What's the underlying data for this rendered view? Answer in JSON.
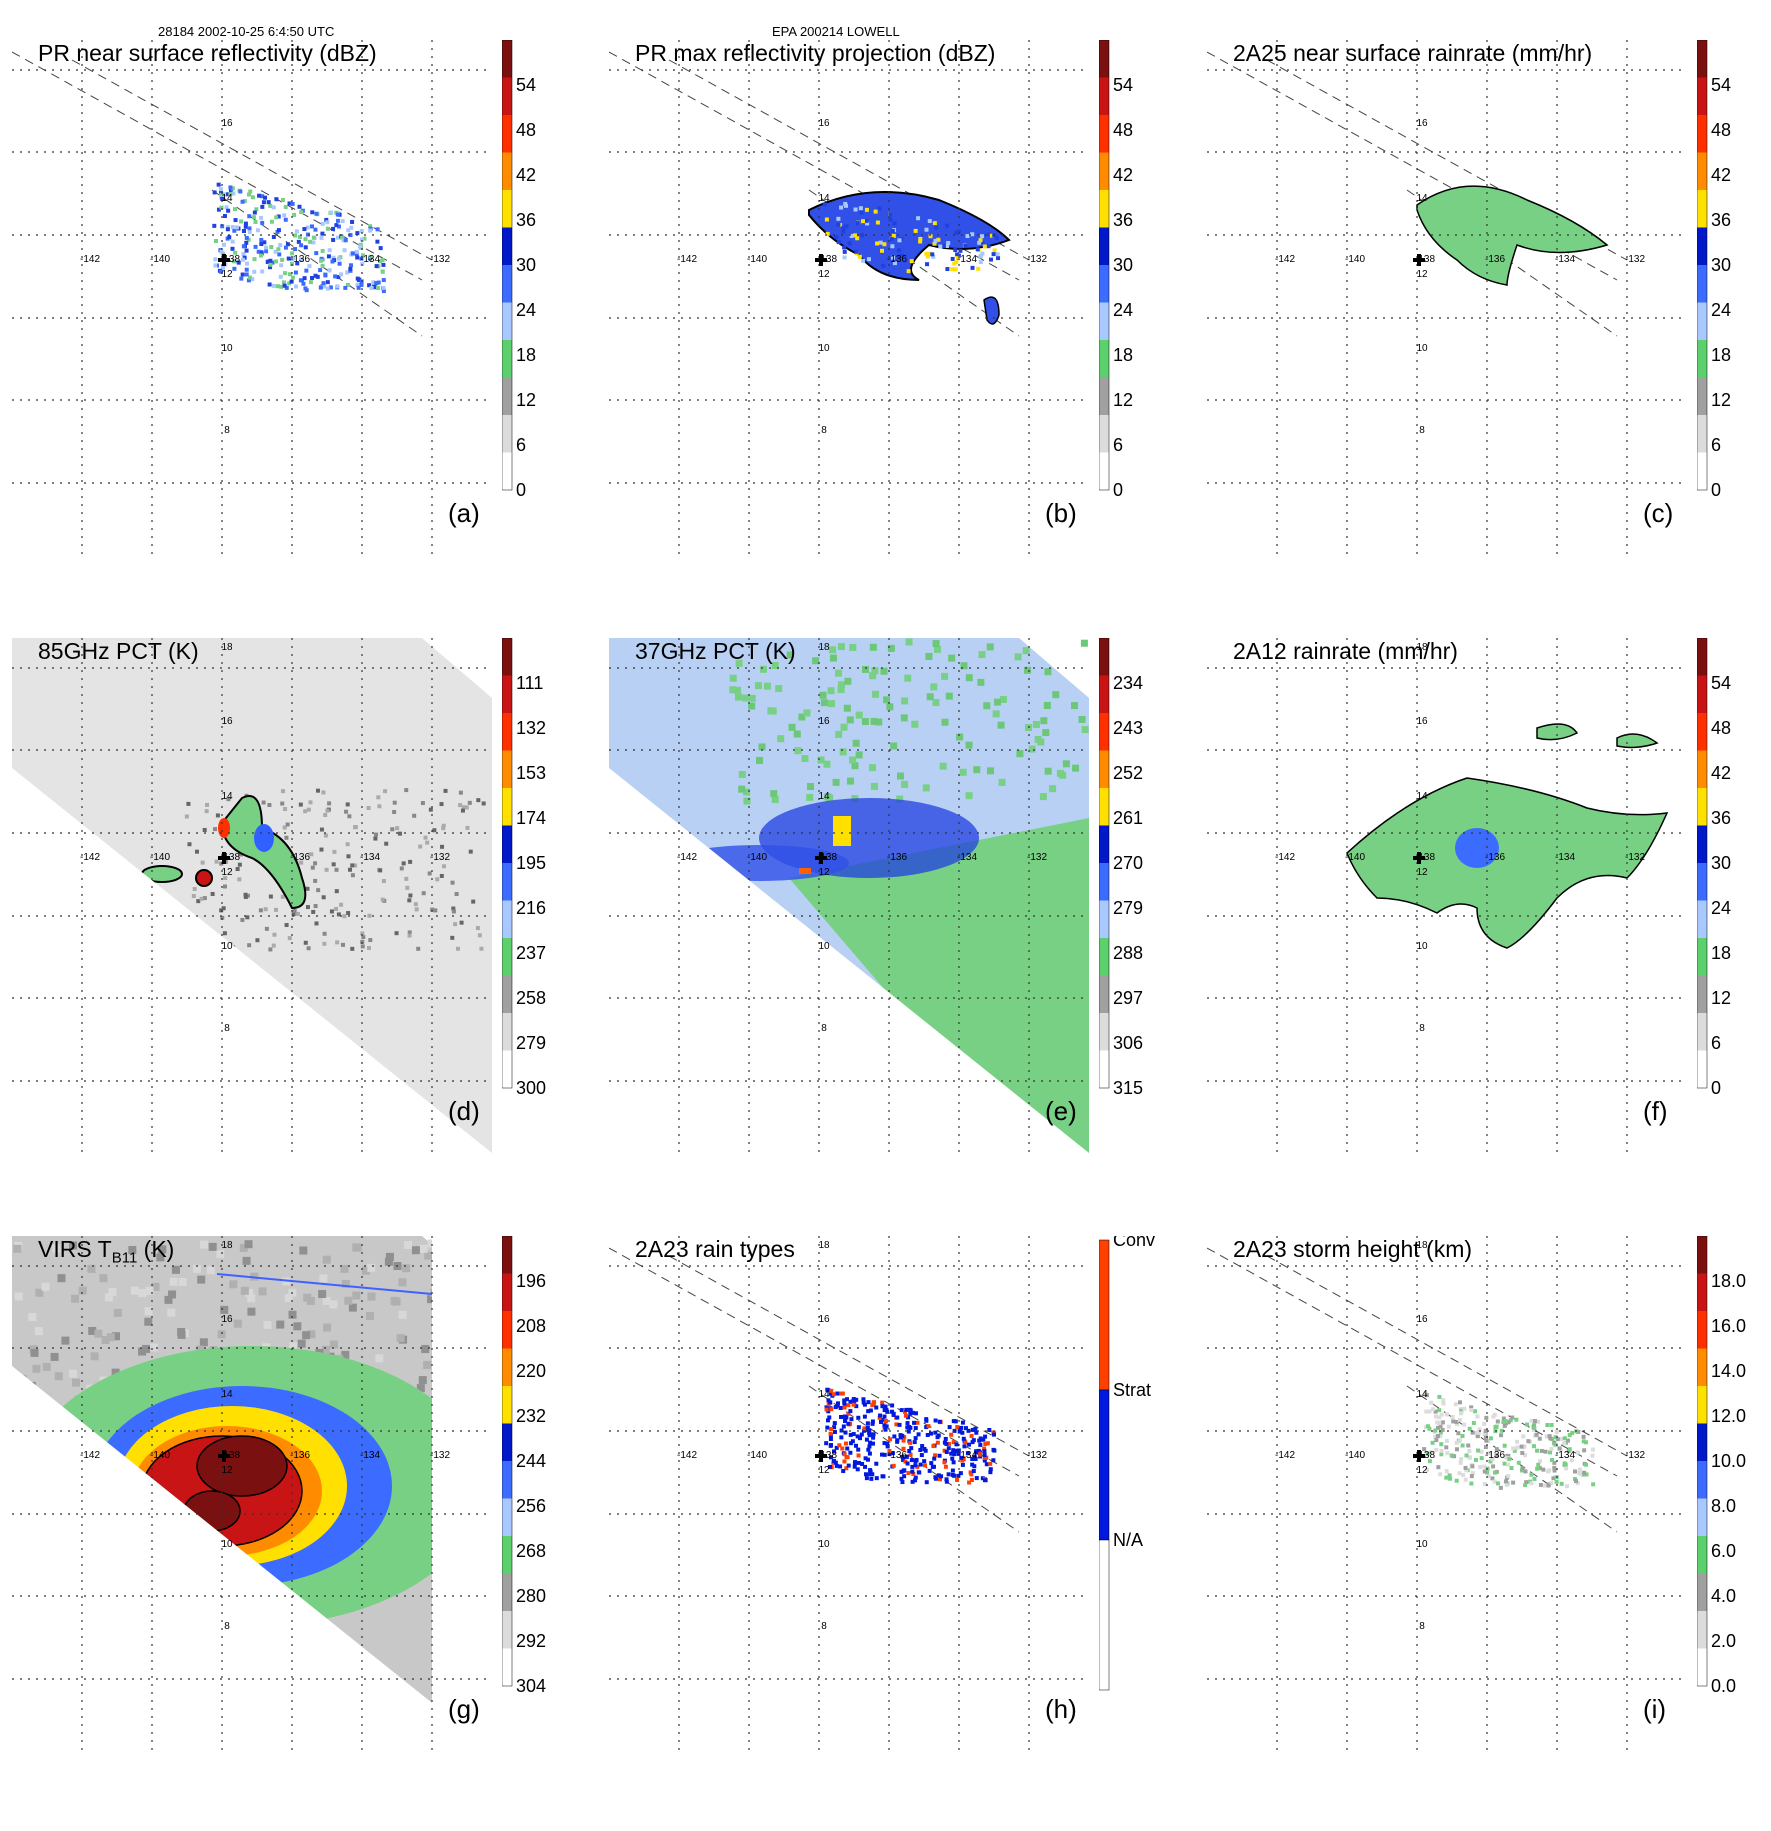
{
  "header": {
    "left_caption": "28184 2002-10-25 6:4:50 UTC",
    "center_caption": "EPA 200214 LOWELL"
  },
  "axis_labels": {
    "lon": [
      "-142",
      "-140",
      "-138",
      "-136",
      "-134",
      "-132"
    ],
    "lat": [
      "8",
      "10",
      "12",
      "14",
      "16",
      "18"
    ]
  },
  "panels": [
    {
      "id": "a",
      "title": "PR near surface reflectivity (dBZ)",
      "label": "(a)",
      "colorbar": [
        "54",
        "48",
        "42",
        "36",
        "30",
        "24",
        "18",
        "12",
        "6",
        "0"
      ],
      "colors": [
        "#7a1010",
        "#c81414",
        "#ff3000",
        "#ff8c00",
        "#ffe000",
        "#0018c8",
        "#3c6cff",
        "#a8c8ff",
        "#5cd06c",
        "#a0a0a0",
        "#dcdcdc",
        "#ffffff"
      ]
    },
    {
      "id": "b",
      "title": "PR max reflectivity projection (dBZ)",
      "label": "(b)",
      "colorbar": [
        "54",
        "48",
        "42",
        "36",
        "30",
        "24",
        "18",
        "12",
        "6",
        "0"
      ],
      "colors": [
        "#7a1010",
        "#c81414",
        "#ff3000",
        "#ff8c00",
        "#ffe000",
        "#0018c8",
        "#3c6cff",
        "#a8c8ff",
        "#5cd06c",
        "#a0a0a0",
        "#dcdcdc",
        "#ffffff"
      ]
    },
    {
      "id": "c",
      "title": "2A25 near surface rainrate (mm/hr)",
      "label": "(c)",
      "colorbar": [
        "54",
        "48",
        "42",
        "36",
        "30",
        "24",
        "18",
        "12",
        "6",
        "0"
      ],
      "colors": [
        "#7a1010",
        "#c81414",
        "#ff3000",
        "#ff8c00",
        "#ffe000",
        "#0018c8",
        "#3c6cff",
        "#a8c8ff",
        "#5cd06c",
        "#a0a0a0",
        "#dcdcdc",
        "#ffffff"
      ]
    },
    {
      "id": "d",
      "title": "85GHz PCT (K)",
      "label": "(d)",
      "colorbar": [
        "111",
        "132",
        "153",
        "174",
        "195",
        "216",
        "237",
        "258",
        "279",
        "300"
      ],
      "colors": [
        "#7a1010",
        "#c81414",
        "#ff3000",
        "#ff8c00",
        "#ffe000",
        "#0018c8",
        "#3c6cff",
        "#a8c8ff",
        "#5cd06c",
        "#a0a0a0",
        "#dcdcdc",
        "#ffffff"
      ]
    },
    {
      "id": "e",
      "title": "37GHz PCT (K)",
      "label": "(e)",
      "colorbar": [
        "234",
        "243",
        "252",
        "261",
        "270",
        "279",
        "288",
        "297",
        "306",
        "315"
      ],
      "colors": [
        "#7a1010",
        "#c81414",
        "#ff3000",
        "#ff8c00",
        "#ffe000",
        "#0018c8",
        "#3c6cff",
        "#a8c8ff",
        "#5cd06c",
        "#a0a0a0",
        "#dcdcdc",
        "#ffffff"
      ]
    },
    {
      "id": "f",
      "title": "2A12 rainrate (mm/hr)",
      "label": "(f)",
      "colorbar": [
        "54",
        "48",
        "42",
        "36",
        "30",
        "24",
        "18",
        "12",
        "6",
        "0"
      ],
      "colors": [
        "#7a1010",
        "#c81414",
        "#ff3000",
        "#ff8c00",
        "#ffe000",
        "#0018c8",
        "#3c6cff",
        "#a8c8ff",
        "#5cd06c",
        "#a0a0a0",
        "#dcdcdc",
        "#ffffff"
      ]
    },
    {
      "id": "g",
      "title_main": "VIRS T",
      "title_sub": "B11",
      "title_end": " (K)",
      "label": "(g)",
      "colorbar": [
        "196",
        "208",
        "220",
        "232",
        "244",
        "256",
        "268",
        "280",
        "292",
        "304"
      ],
      "colors": [
        "#7a1010",
        "#c81414",
        "#ff3000",
        "#ff8c00",
        "#ffe000",
        "#0018c8",
        "#3c6cff",
        "#a8c8ff",
        "#5cd06c",
        "#a0a0a0",
        "#dcdcdc",
        "#ffffff"
      ]
    },
    {
      "id": "h",
      "title": "2A23 rain types",
      "label": "(h)",
      "colorbar": [
        "Conv",
        "Strat",
        "N/A"
      ],
      "colors": [
        "#ff4000",
        "#0018e0",
        "#ffffff"
      ]
    },
    {
      "id": "i",
      "title": "2A23 storm height (km)",
      "label": "(i)",
      "colorbar": [
        "18.0",
        "16.0",
        "14.0",
        "12.0",
        "10.0",
        "8.0",
        "6.0",
        "4.0",
        "2.0",
        "0.0"
      ],
      "colors": [
        "#7a1010",
        "#c81414",
        "#ff3000",
        "#ff8c00",
        "#ffe000",
        "#0018c8",
        "#3c6cff",
        "#a8c8ff",
        "#5cd06c",
        "#a0a0a0",
        "#dcdcdc",
        "#ffffff"
      ]
    }
  ]
}
